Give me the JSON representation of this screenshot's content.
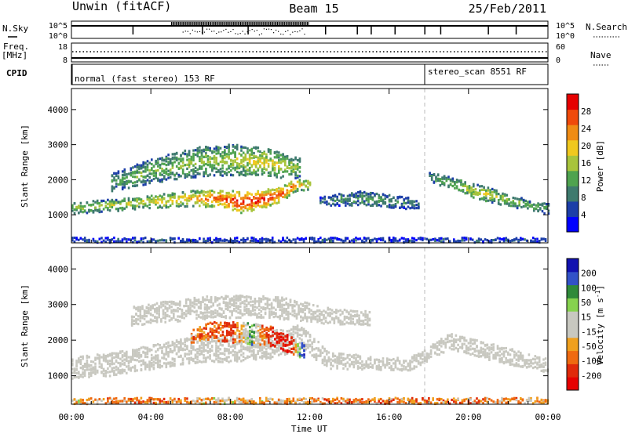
{
  "header": {
    "station": "Unwin (fitACF)",
    "beam": "Beam 15",
    "date": "25/Feb/2011"
  },
  "summary": {
    "nsky_label": "N.Sky",
    "nsky_ticks": [
      "10^5",
      "10^0"
    ],
    "nsearch_label": "N.Search",
    "freq_label_1": "Freq.",
    "freq_label_2": "[MHz]",
    "freq_ticks": [
      "18",
      "8"
    ],
    "nave_label": "Nave",
    "nave_ticks": [
      "60",
      "0"
    ],
    "cpid_label": "CPID",
    "cpid_modes": [
      {
        "label": "normal (fast stereo) 153 RF",
        "start_hour": 0
      },
      {
        "label": "stereo_scan 8551 RF",
        "start_hour": 18
      }
    ]
  },
  "colors": {
    "power": [
      "#0000ff",
      "#1c3ea8",
      "#3e7a6e",
      "#4fa34f",
      "#a8c43c",
      "#f0c81e",
      "#f08c14",
      "#f04a0a",
      "#e60000"
    ],
    "velocity": [
      "#1212b0",
      "#3252c8",
      "#2f8a3a",
      "#86d24e",
      "#c8c8c0",
      "#c8c8c0",
      "#f0a01e",
      "#ef6a10",
      "#e02a0a",
      "#e60000"
    ],
    "ground_scatter": "#c8c8c0"
  },
  "chart_data": [
    {
      "type": "heatmap",
      "panel": "power",
      "ylabel": "Slant Range [km]",
      "xlabel": "",
      "xlim": [
        0,
        24
      ],
      "ylim": [
        200,
        4600
      ],
      "yticks": [
        1000,
        2000,
        3000,
        4000
      ],
      "colorbar": {
        "label": "Power [dB]",
        "ticks": [
          "4",
          "8",
          "12",
          "16",
          "20",
          "24",
          "28"
        ],
        "range": [
          0,
          30
        ]
      },
      "regions": [
        {
          "name": "main-band",
          "x": [
            0,
            2,
            4,
            6,
            7.5,
            8.5,
            9.5,
            10.5,
            11.2,
            12
          ],
          "range_km": [
            1220,
            1300,
            1400,
            1500,
            1500,
            1380,
            1460,
            1620,
            1860,
            1900
          ],
          "width_km": [
            160,
            170,
            180,
            220,
            260,
            300,
            260,
            230,
            180,
            140
          ],
          "power_db": [
            13,
            15,
            17,
            20,
            24,
            28,
            27,
            25,
            22,
            16
          ]
        },
        {
          "name": "upper-band",
          "x": [
            2,
            3.5,
            5,
            6.5,
            8,
            9.5,
            10.5,
            11.5
          ],
          "range_km": [
            1950,
            2200,
            2400,
            2550,
            2600,
            2550,
            2450,
            2350
          ],
          "width_km": [
            260,
            320,
            380,
            420,
            440,
            400,
            360,
            280
          ],
          "power_db": [
            11,
            12,
            13,
            14,
            15,
            17,
            16,
            13
          ]
        },
        {
          "name": "midday-patches",
          "x": [
            12.5,
            13.5,
            14.5,
            15.5,
            16.5,
            17.5
          ],
          "range_km": [
            1400,
            1460,
            1500,
            1450,
            1380,
            1350
          ],
          "width_km": [
            140,
            180,
            200,
            200,
            180,
            150
          ],
          "power_db": [
            8,
            9,
            10,
            11,
            9,
            8
          ]
        },
        {
          "name": "evening-band",
          "x": [
            18,
            19,
            20,
            21,
            22,
            23,
            24
          ],
          "range_km": [
            2100,
            1950,
            1750,
            1600,
            1450,
            1300,
            1200
          ],
          "width_km": [
            140,
            180,
            200,
            200,
            180,
            160,
            150
          ],
          "power_db": [
            10,
            13,
            16,
            16,
            14,
            12,
            10
          ]
        },
        {
          "name": "near-range",
          "x": [
            0,
            4,
            8,
            12,
            16,
            20,
            24
          ],
          "range_km": [
            300,
            300,
            300,
            300,
            300,
            300,
            300
          ],
          "width_km": [
            80,
            80,
            80,
            80,
            80,
            80,
            80
          ],
          "power_db": [
            6,
            6,
            5,
            5,
            5,
            6,
            6
          ]
        }
      ]
    },
    {
      "type": "heatmap",
      "panel": "velocity",
      "ylabel": "Slant Range [km]",
      "xlabel": "Time UT",
      "xlim": [
        0,
        24
      ],
      "ylim": [
        200,
        4600
      ],
      "yticks": [
        1000,
        2000,
        3000,
        4000
      ],
      "xticks": [
        "00:00",
        "04:00",
        "08:00",
        "12:00",
        "16:00",
        "20:00",
        "00:00"
      ],
      "colorbar": {
        "label": "Velocity [m s^-1]",
        "ticks": [
          "200",
          "100",
          "50",
          "15",
          "-15",
          "-50",
          "-100",
          "-200"
        ],
        "range": [
          -250,
          250
        ]
      },
      "regions": [
        {
          "name": "ground-scatter",
          "x": [
            0,
            2,
            4,
            6,
            8,
            10,
            11.5,
            13,
            15,
            17,
            19,
            21,
            23,
            24
          ],
          "range_km": [
            1250,
            1350,
            1550,
            1750,
            1800,
            1900,
            2100,
            1450,
            1400,
            1350,
            2000,
            1700,
            1450,
            1300
          ],
          "width_km": [
            300,
            320,
            340,
            360,
            380,
            380,
            360,
            220,
            200,
            180,
            220,
            240,
            220,
            200
          ],
          "velocity": [
            0,
            0,
            0,
            0,
            0,
            0,
            0,
            0,
            0,
            0,
            0,
            0,
            0,
            0
          ]
        },
        {
          "name": "ionospheric-echoes",
          "x": [
            6,
            7,
            8,
            9,
            10,
            11,
            11.7
          ],
          "range_km": [
            2150,
            2300,
            2250,
            2200,
            2150,
            1900,
            1700
          ],
          "width_km": [
            200,
            260,
            300,
            300,
            280,
            240,
            200
          ],
          "velocity": [
            -60,
            -90,
            -130,
            60,
            -150,
            -200,
            220
          ]
        },
        {
          "name": "upper-grey",
          "x": [
            3,
            5,
            7,
            9,
            11,
            13,
            15
          ],
          "range_km": [
            2700,
            2850,
            2950,
            3000,
            2900,
            2700,
            2650
          ],
          "width_km": [
            260,
            300,
            320,
            320,
            300,
            220,
            200
          ],
          "velocity": [
            0,
            0,
            0,
            0,
            0,
            0,
            0
          ]
        },
        {
          "name": "near-range-flow",
          "x": [
            0,
            4,
            8,
            12,
            16,
            20,
            24
          ],
          "range_km": [
            320,
            320,
            320,
            320,
            320,
            320,
            320
          ],
          "width_km": [
            90,
            90,
            90,
            90,
            90,
            90,
            90
          ],
          "velocity": [
            -40,
            -60,
            -30,
            -50,
            -70,
            -60,
            -40
          ]
        }
      ]
    }
  ]
}
